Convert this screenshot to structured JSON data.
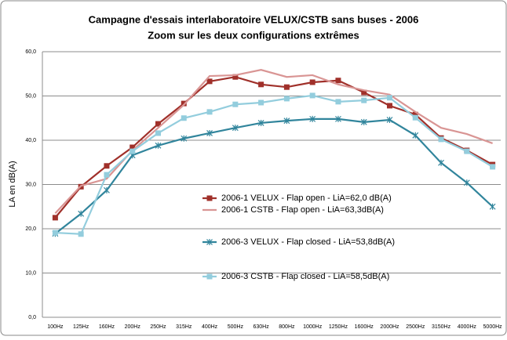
{
  "chart_data": {
    "type": "line",
    "title": "Campagne d'essais interlaboratoire VELUX/CSTB sans buses - 2006",
    "subtitle": "Zoom sur les deux configurations extrêmes",
    "y_label": "LA en dB(A)",
    "categories": [
      "100Hz",
      "125Hz",
      "160Hz",
      "200Hz",
      "250Hz",
      "315Hz",
      "400Hz",
      "500Hz",
      "630Hz",
      "800Hz",
      "1000Hz",
      "1250Hz",
      "1600Hz",
      "2000Hz",
      "2500Hz",
      "3150Hz",
      "4000Hz",
      "5000Hz"
    ],
    "series": [
      {
        "name": "2006-1 VELUX - Flap open - LiA=62,0 dB(A)",
        "color": "#a0302a",
        "marker": "square",
        "values": [
          22.5,
          29.5,
          34.2,
          38.4,
          43.7,
          48.3,
          53.3,
          54.3,
          52.6,
          52.0,
          53.1,
          53.5,
          50.8,
          47.8,
          45.8,
          40.5,
          37.7,
          34.5
        ]
      },
      {
        "name": "2006-1 CSTB - Flap open - LiA=63,3dB(A)",
        "color": "#d99594",
        "marker": "none",
        "values": [
          23.5,
          29.7,
          31.3,
          37.7,
          42.8,
          48.0,
          54.5,
          54.7,
          55.9,
          54.3,
          54.7,
          52.6,
          51.3,
          50.3,
          46.4,
          42.8,
          41.4,
          39.3
        ]
      },
      {
        "name": "2006-3 VELUX - Flap closed - LiA=53,8dB(A)",
        "color": "#31859c",
        "marker": "star",
        "values": [
          18.9,
          23.4,
          28.7,
          36.6,
          38.8,
          40.4,
          41.6,
          42.8,
          43.9,
          44.4,
          44.8,
          44.8,
          44.1,
          44.6,
          41.1,
          34.9,
          30.4,
          25.0
        ]
      },
      {
        "name": "2006-3 CSTB - Flap closed - LiA=58,5dB(A)",
        "color": "#93cddd",
        "marker": "square",
        "values": [
          19.1,
          18.8,
          32.2,
          37.5,
          41.6,
          45.0,
          46.4,
          48.1,
          48.5,
          49.4,
          50.1,
          48.7,
          49.0,
          49.6,
          45.1,
          40.2,
          37.5,
          34.0
        ]
      }
    ],
    "ylim": [
      0,
      60
    ],
    "yticks": [
      {
        "value": 0,
        "label": "0,0"
      },
      {
        "value": 10,
        "label": "10,0"
      },
      {
        "value": 20,
        "label": "20,0"
      },
      {
        "value": 30,
        "label": "30,0"
      },
      {
        "value": 40,
        "label": "40,0"
      },
      {
        "value": 50,
        "label": "50,0"
      },
      {
        "value": 60,
        "label": "60,0"
      }
    ],
    "grid": true,
    "legend": "center"
  }
}
